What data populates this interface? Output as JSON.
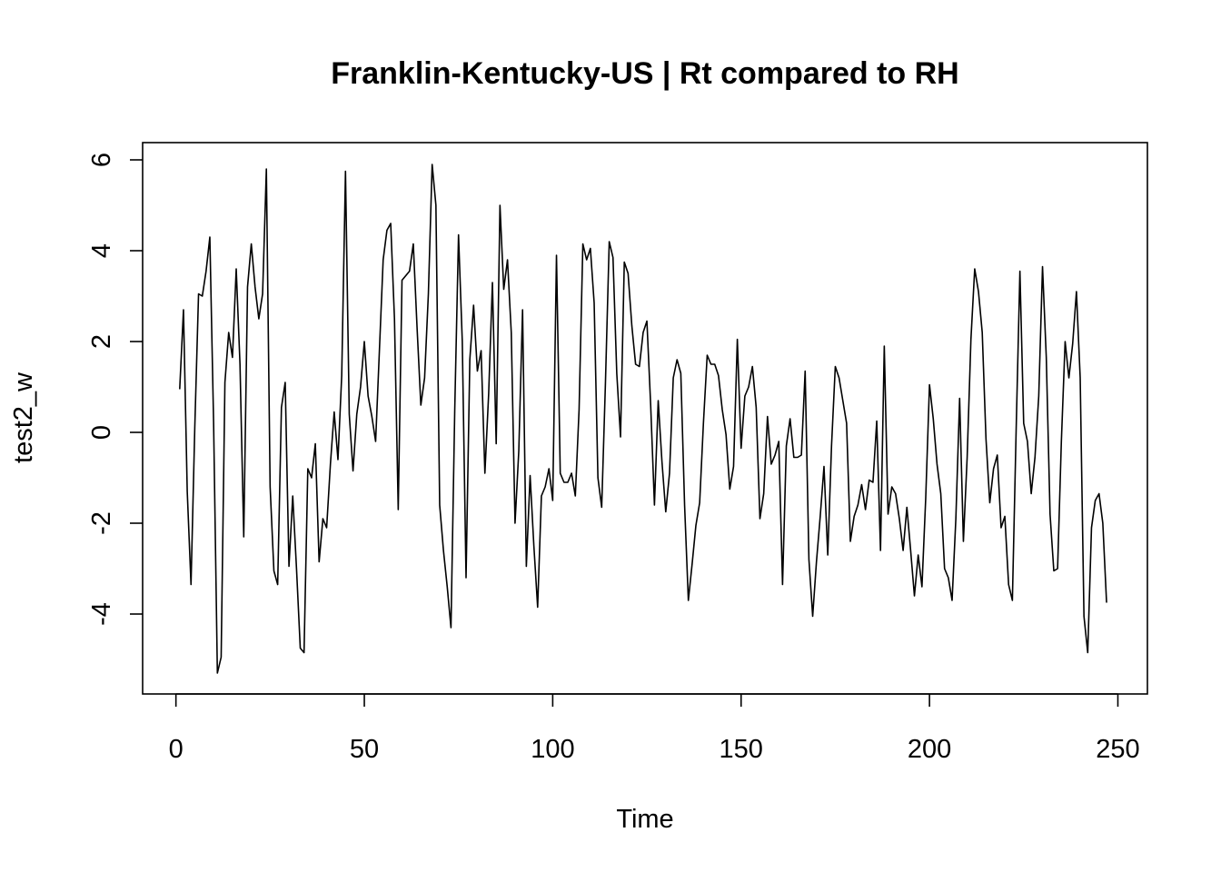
{
  "chart_data": {
    "type": "line",
    "title": "Franklin-Kentucky-US | Rt compared to RH",
    "xlabel": "Time",
    "ylabel": "test2_w",
    "xlim": [
      -8.84,
      257.84
    ],
    "ylim": [
      -5.76,
      6.38
    ],
    "xticks": [
      0,
      50,
      100,
      150,
      200,
      250
    ],
    "yticks": [
      -4,
      -2,
      0,
      2,
      4,
      6
    ],
    "grid": false,
    "legend": "none",
    "line_color": "#000000",
    "series": [
      {
        "x_start": 1,
        "values": [
          0.95,
          2.7,
          -1.3,
          -3.35,
          0.1,
          3.05,
          3.0,
          3.55,
          4.3,
          0.2,
          -5.3,
          -4.95,
          1.1,
          2.2,
          1.65,
          3.6,
          1.5,
          -2.3,
          3.2,
          4.15,
          3.2,
          2.5,
          3.05,
          5.8,
          -1.2,
          -3.05,
          -3.35,
          0.55,
          1.1,
          -2.95,
          -1.4,
          -3.0,
          -4.75,
          -4.85,
          -0.8,
          -1.0,
          -0.25,
          -2.85,
          -1.9,
          -2.1,
          -0.7,
          0.45,
          -0.6,
          1.25,
          5.75,
          0.4,
          -0.85,
          0.4,
          1.0,
          2.0,
          0.8,
          0.35,
          -0.2,
          1.8,
          3.8,
          4.45,
          4.6,
          2.5,
          -1.7,
          3.35,
          3.45,
          3.55,
          4.15,
          2.3,
          0.6,
          1.2,
          3.05,
          5.9,
          5.0,
          -1.6,
          -2.6,
          -3.4,
          -4.3,
          0.5,
          4.35,
          2.0,
          -3.2,
          1.6,
          2.8,
          1.35,
          1.8,
          -0.9,
          0.85,
          3.3,
          -0.25,
          5.0,
          3.15,
          3.8,
          2.2,
          -2.0,
          -0.4,
          2.7,
          -2.95,
          -0.95,
          -2.5,
          -3.85,
          -1.4,
          -1.2,
          -0.8,
          -1.5,
          3.9,
          -0.9,
          -1.1,
          -1.1,
          -0.9,
          -1.4,
          0.5,
          4.15,
          3.8,
          4.05,
          2.85,
          -1.0,
          -1.65,
          1.1,
          4.2,
          3.85,
          1.3,
          -0.1,
          3.75,
          3.5,
          2.35,
          1.5,
          1.45,
          2.2,
          2.45,
          0.6,
          -1.6,
          0.7,
          -0.65,
          -1.75,
          -0.9,
          1.2,
          1.6,
          1.3,
          -1.6,
          -3.7,
          -2.9,
          -2.05,
          -1.55,
          0.2,
          1.7,
          1.5,
          1.5,
          1.25,
          0.5,
          -0.05,
          -1.25,
          -0.75,
          2.05,
          -0.35,
          0.8,
          1.0,
          1.45,
          0.55,
          -1.9,
          -1.35,
          0.35,
          -0.7,
          -0.5,
          -0.2,
          -3.35,
          -0.3,
          0.3,
          -0.55,
          -0.55,
          -0.5,
          1.35,
          -2.8,
          -4.05,
          -2.85,
          -1.85,
          -0.75,
          -2.7,
          -0.3,
          1.45,
          1.2,
          0.7,
          0.2,
          -2.4,
          -1.85,
          -1.6,
          -1.15,
          -1.7,
          -1.05,
          -1.1,
          0.25,
          -2.6,
          1.9,
          -1.8,
          -1.2,
          -1.35,
          -1.9,
          -2.6,
          -1.65,
          -2.6,
          -3.6,
          -2.7,
          -3.4,
          -1.45,
          1.05,
          0.3,
          -0.7,
          -1.35,
          -3.0,
          -3.2,
          -3.7,
          -1.9,
          0.75,
          -2.4,
          -0.55,
          2.05,
          3.6,
          3.1,
          2.2,
          -0.15,
          -1.55,
          -0.8,
          -0.5,
          -2.1,
          -1.85,
          -3.35,
          -3.7,
          0.05,
          3.55,
          0.2,
          -0.2,
          -1.35,
          -0.55,
          0.8,
          3.65,
          1.65,
          -1.8,
          -3.05,
          -3.0,
          -0.2,
          2.0,
          1.2,
          1.95,
          3.1,
          1.2,
          -4.05,
          -4.85,
          -2.1,
          -1.5,
          -1.35,
          -2.0,
          -3.75
        ]
      }
    ]
  }
}
